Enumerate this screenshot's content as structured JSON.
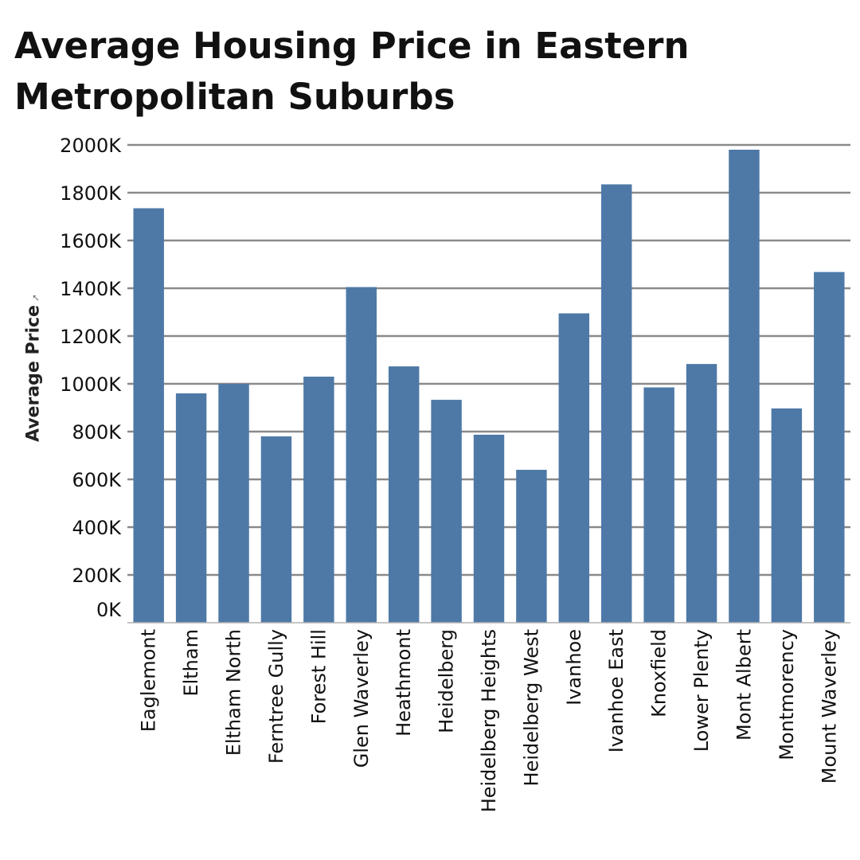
{
  "chart_data": {
    "type": "bar",
    "title": "Average Housing Price in Eastern Metropolitan Suburbs",
    "xlabel": "",
    "ylabel": "Average Price",
    "ylim": [
      0,
      2000000
    ],
    "yticks": [
      {
        "value": 0,
        "label": "0K"
      },
      {
        "value": 200000,
        "label": "200K"
      },
      {
        "value": 400000,
        "label": "400K"
      },
      {
        "value": 600000,
        "label": "600K"
      },
      {
        "value": 800000,
        "label": "800K"
      },
      {
        "value": 1000000,
        "label": "1000K"
      },
      {
        "value": 1200000,
        "label": "1200K"
      },
      {
        "value": 1400000,
        "label": "1400K"
      },
      {
        "value": 1600000,
        "label": "1600K"
      },
      {
        "value": 1800000,
        "label": "1800K"
      },
      {
        "value": 2000000,
        "label": "2000K"
      }
    ],
    "grid": true,
    "bar_color": "#4e79a7",
    "categories": [
      "Eaglemont",
      "Eltham",
      "Eltham North",
      "Ferntree Gully",
      "Forest Hill",
      "Glen Waverley",
      "Heathmont",
      "Heidelberg",
      "Heidelberg Heights",
      "Heidelberg West",
      "Ivanhoe",
      "Ivanhoe East",
      "Knoxfield",
      "Lower Plenty",
      "Mont Albert",
      "Montmorency",
      "Mount Waverley"
    ],
    "values": [
      1735000,
      960000,
      1000000,
      780000,
      1030000,
      1405000,
      1073000,
      933000,
      787000,
      640000,
      1295000,
      1835000,
      985000,
      1083000,
      1980000,
      897000,
      1468000
    ]
  }
}
